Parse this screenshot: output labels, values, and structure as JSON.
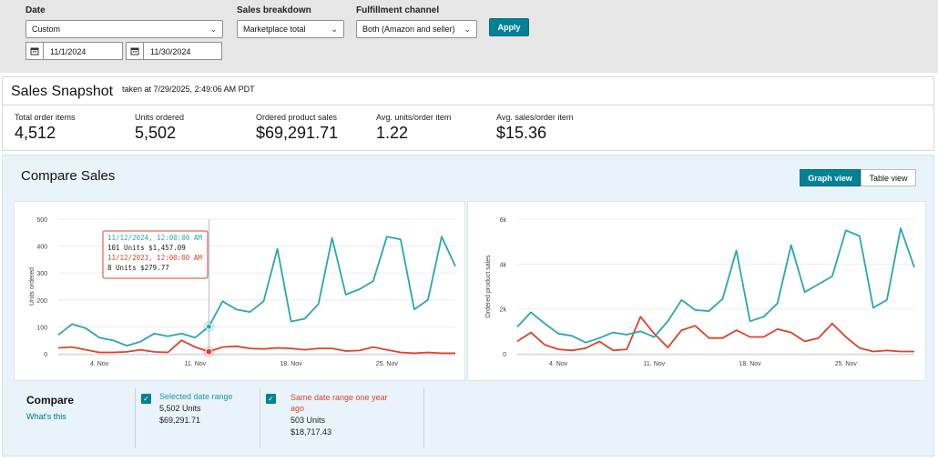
{
  "filters": {
    "date_label": "Date",
    "date_value": "Custom",
    "start_date": "11/1/2024",
    "end_date": "11/30/2024",
    "breakdown_label": "Sales breakdown",
    "breakdown_value": "Marketplace total",
    "channel_label": "Fulfillment channel",
    "channel_value": "Both (Amazon and seller)",
    "apply_label": "Apply"
  },
  "snapshot": {
    "title": "Sales Snapshot",
    "taken_at": "taken at 7/29/2025, 2:49:06 AM PDT",
    "metrics": [
      {
        "label": "Total order items",
        "value": "4,512"
      },
      {
        "label": "Units ordered",
        "value": "5,502"
      },
      {
        "label": "Ordered product sales",
        "value": "$69,291.71"
      },
      {
        "label": "Avg. units/order item",
        "value": "1.22"
      },
      {
        "label": "Avg. sales/order item",
        "value": "$15.36"
      }
    ]
  },
  "compare": {
    "title": "Compare Sales",
    "graph_view": "Graph view",
    "table_view": "Table view",
    "label": "Compare",
    "whats_this": "What's this",
    "colors": {
      "current": "#2aa6b0",
      "previous": "#d9442a"
    },
    "legend": [
      {
        "title": "Selected date range",
        "units": "5,502 Units",
        "sales": "$69,291.71",
        "color": "#1a9aa3"
      },
      {
        "title": "Same date range one year ago",
        "units": "503 Units",
        "sales": "$18,717.43",
        "color": "#d9442a"
      }
    ],
    "tooltip": {
      "line1": "11/12/2024, 12:00:00 AM",
      "line2": "101 Units $1,457.09",
      "line3": "11/12/2023, 12:00:00 AM",
      "line4": "8 Units $279.77"
    }
  },
  "chart_data": [
    {
      "type": "line",
      "ylabel": "Units ordered",
      "ylim": [
        0,
        500
      ],
      "yticks": [
        "0",
        "100",
        "200",
        "300",
        "400",
        "500"
      ],
      "xticks": [
        {
          "day": 4,
          "label": "4. Nov"
        },
        {
          "day": 11,
          "label": "11. Nov"
        },
        {
          "day": 18,
          "label": "18. Nov"
        },
        {
          "day": 25,
          "label": "25. Nov"
        }
      ],
      "x": [
        1,
        2,
        3,
        4,
        5,
        6,
        7,
        8,
        9,
        10,
        11,
        12,
        13,
        14,
        15,
        16,
        17,
        18,
        19,
        20,
        21,
        22,
        23,
        24,
        25,
        26,
        27,
        28,
        29,
        30
      ],
      "series": [
        {
          "name": "Selected date range",
          "values": [
            70,
            110,
            95,
            60,
            50,
            30,
            45,
            75,
            65,
            75,
            60,
            101,
            195,
            165,
            155,
            195,
            390,
            120,
            130,
            185,
            430,
            220,
            240,
            270,
            435,
            425,
            165,
            200,
            435,
            325
          ]
        },
        {
          "name": "Same date range one year ago",
          "values": [
            22,
            25,
            15,
            5,
            5,
            7,
            15,
            7,
            5,
            50,
            25,
            8,
            25,
            28,
            20,
            18,
            22,
            20,
            15,
            20,
            20,
            10,
            12,
            25,
            15,
            5,
            2,
            5,
            2,
            2
          ]
        }
      ]
    },
    {
      "type": "line",
      "ylabel": "Ordered product sales",
      "ylim": [
        0,
        6000
      ],
      "yticks": [
        "0",
        "2k",
        "4k",
        "6k"
      ],
      "xticks": [
        {
          "day": 4,
          "label": "4. Nov"
        },
        {
          "day": 11,
          "label": "11. Nov"
        },
        {
          "day": 18,
          "label": "18. Nov"
        },
        {
          "day": 25,
          "label": "25. Nov"
        }
      ],
      "x": [
        1,
        2,
        3,
        4,
        5,
        6,
        7,
        8,
        9,
        10,
        11,
        12,
        13,
        14,
        15,
        16,
        17,
        18,
        19,
        20,
        21,
        22,
        23,
        24,
        25,
        26,
        27,
        28,
        29,
        30
      ],
      "series": [
        {
          "name": "Selected date range",
          "values": [
            1200,
            1850,
            1350,
            900,
            800,
            500,
            700,
            950,
            850,
            1000,
            750,
            1457,
            2400,
            1950,
            1900,
            2450,
            4600,
            1450,
            1650,
            2250,
            4850,
            2750,
            3100,
            3450,
            5500,
            5250,
            2050,
            2400,
            5600,
            3850
          ]
        },
        {
          "name": "Same date range one year ago",
          "values": [
            550,
            950,
            400,
            200,
            150,
            250,
            550,
            150,
            200,
            1650,
            900,
            280,
            1050,
            1250,
            700,
            700,
            1050,
            750,
            750,
            1100,
            950,
            550,
            700,
            1350,
            750,
            250,
            100,
            150,
            100,
            100
          ]
        }
      ]
    }
  ]
}
